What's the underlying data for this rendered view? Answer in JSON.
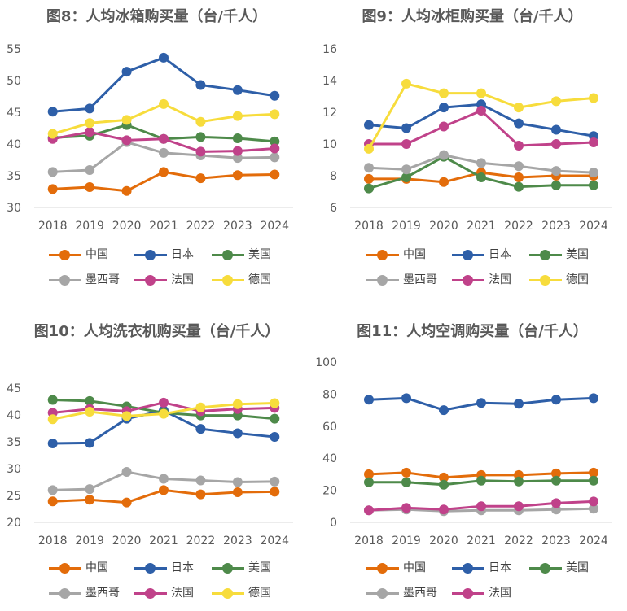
{
  "chart_data": [
    {
      "type": "line",
      "title": "图8：人均冰箱购买量（台/千人）",
      "categories": [
        "2018",
        "2019",
        "2020",
        "2021",
        "2022",
        "2023",
        "2024"
      ],
      "ylim": [
        30,
        55
      ],
      "yticks": [
        30,
        35,
        40,
        45,
        50,
        55
      ],
      "grid": false,
      "legend_position": "bottom",
      "series": [
        {
          "name": "中国",
          "color": "#e36c0a",
          "values": [
            32.9,
            33.2,
            32.6,
            35.6,
            34.6,
            35.1,
            35.2
          ]
        },
        {
          "name": "日本",
          "color": "#2e5fa8",
          "values": [
            45.1,
            45.6,
            51.4,
            53.6,
            49.3,
            48.5,
            47.6
          ]
        },
        {
          "name": "美国",
          "color": "#4e8a4a",
          "values": [
            41.0,
            41.3,
            43.0,
            40.8,
            41.1,
            40.9,
            40.4
          ]
        },
        {
          "name": "墨西哥",
          "color": "#a6a6a6",
          "values": [
            35.6,
            35.9,
            40.3,
            38.6,
            38.2,
            37.8,
            37.9
          ]
        },
        {
          "name": "法国",
          "color": "#c0428a",
          "values": [
            40.8,
            41.9,
            40.6,
            40.8,
            38.8,
            38.9,
            39.3
          ]
        },
        {
          "name": "德国",
          "color": "#f7dc3c",
          "values": [
            41.6,
            43.3,
            43.8,
            46.3,
            43.5,
            44.4,
            44.7
          ]
        }
      ]
    },
    {
      "type": "line",
      "title": "图9：人均冰柜购买量（台/千人）",
      "categories": [
        "2018",
        "2019",
        "2020",
        "2021",
        "2022",
        "2023",
        "2024"
      ],
      "ylim": [
        6,
        16
      ],
      "yticks": [
        6,
        8,
        10,
        12,
        14,
        16
      ],
      "grid": false,
      "legend_position": "bottom",
      "series": [
        {
          "name": "中国",
          "color": "#e36c0a",
          "values": [
            7.8,
            7.8,
            7.6,
            8.2,
            7.9,
            8.0,
            8.0
          ]
        },
        {
          "name": "日本",
          "color": "#2e5fa8",
          "values": [
            11.2,
            11.0,
            12.3,
            12.5,
            11.3,
            10.9,
            10.5
          ]
        },
        {
          "name": "美国",
          "color": "#4e8a4a",
          "values": [
            7.2,
            7.9,
            9.2,
            7.9,
            7.3,
            7.4,
            7.4
          ]
        },
        {
          "name": "墨西哥",
          "color": "#a6a6a6",
          "values": [
            8.5,
            8.4,
            9.3,
            8.8,
            8.6,
            8.3,
            8.2
          ]
        },
        {
          "name": "法国",
          "color": "#c0428a",
          "values": [
            10.0,
            10.0,
            11.1,
            12.1,
            9.9,
            10.0,
            10.1
          ]
        },
        {
          "name": "德国",
          "color": "#f7dc3c",
          "values": [
            9.7,
            13.8,
            13.2,
            13.2,
            12.3,
            12.7,
            12.9
          ]
        }
      ]
    },
    {
      "type": "line",
      "title": "图10：人均洗衣机购买量（台/千人）",
      "categories": [
        "2018",
        "2019",
        "2020",
        "2021",
        "2022",
        "2023",
        "2024"
      ],
      "ylim": [
        20,
        45
      ],
      "yticks": [
        20,
        25,
        30,
        35,
        40,
        45
      ],
      "grid": false,
      "legend_position": "bottom",
      "series": [
        {
          "name": "中国",
          "color": "#e36c0a",
          "values": [
            23.9,
            24.2,
            23.7,
            26.0,
            25.2,
            25.6,
            25.7
          ]
        },
        {
          "name": "日本",
          "color": "#2e5fa8",
          "values": [
            34.7,
            34.8,
            39.3,
            40.8,
            37.4,
            36.6,
            35.9
          ]
        },
        {
          "name": "美国",
          "color": "#4e8a4a",
          "values": [
            42.8,
            42.6,
            41.6,
            40.4,
            39.9,
            39.9,
            39.3
          ]
        },
        {
          "name": "墨西哥",
          "color": "#a6a6a6",
          "values": [
            26.0,
            26.2,
            29.4,
            28.1,
            27.8,
            27.5,
            27.6
          ]
        },
        {
          "name": "法国",
          "color": "#c0428a",
          "values": [
            40.4,
            41.1,
            40.7,
            42.3,
            40.7,
            41.1,
            41.3
          ]
        },
        {
          "name": "德国",
          "color": "#f7dc3c",
          "values": [
            39.2,
            40.6,
            39.8,
            40.2,
            41.4,
            42.0,
            42.2
          ]
        }
      ]
    },
    {
      "type": "line",
      "title": "图11：人均空调购买量（台/千人）",
      "categories": [
        "2018",
        "2019",
        "2020",
        "2021",
        "2022",
        "2023",
        "2024"
      ],
      "ylim": [
        0,
        100
      ],
      "yticks": [
        0,
        20,
        40,
        60,
        80,
        100
      ],
      "grid": false,
      "legend_position": "bottom",
      "series": [
        {
          "name": "中国",
          "color": "#e36c0a",
          "values": [
            30.0,
            31.0,
            28.0,
            29.5,
            29.5,
            30.5,
            31.0
          ]
        },
        {
          "name": "日本",
          "color": "#2e5fa8",
          "values": [
            76.5,
            77.5,
            70.0,
            74.5,
            74.0,
            76.5,
            77.5
          ]
        },
        {
          "name": "美国",
          "color": "#4e8a4a",
          "values": [
            25.0,
            25.0,
            23.5,
            26.0,
            25.5,
            26.0,
            26.0
          ]
        },
        {
          "name": "墨西哥",
          "color": "#a6a6a6",
          "values": [
            7.5,
            8.0,
            7.0,
            7.5,
            7.5,
            8.0,
            8.5
          ]
        },
        {
          "name": "法国",
          "color": "#c0428a",
          "values": [
            7.5,
            9.0,
            8.0,
            10.0,
            10.0,
            12.0,
            13.0
          ]
        }
      ]
    }
  ]
}
